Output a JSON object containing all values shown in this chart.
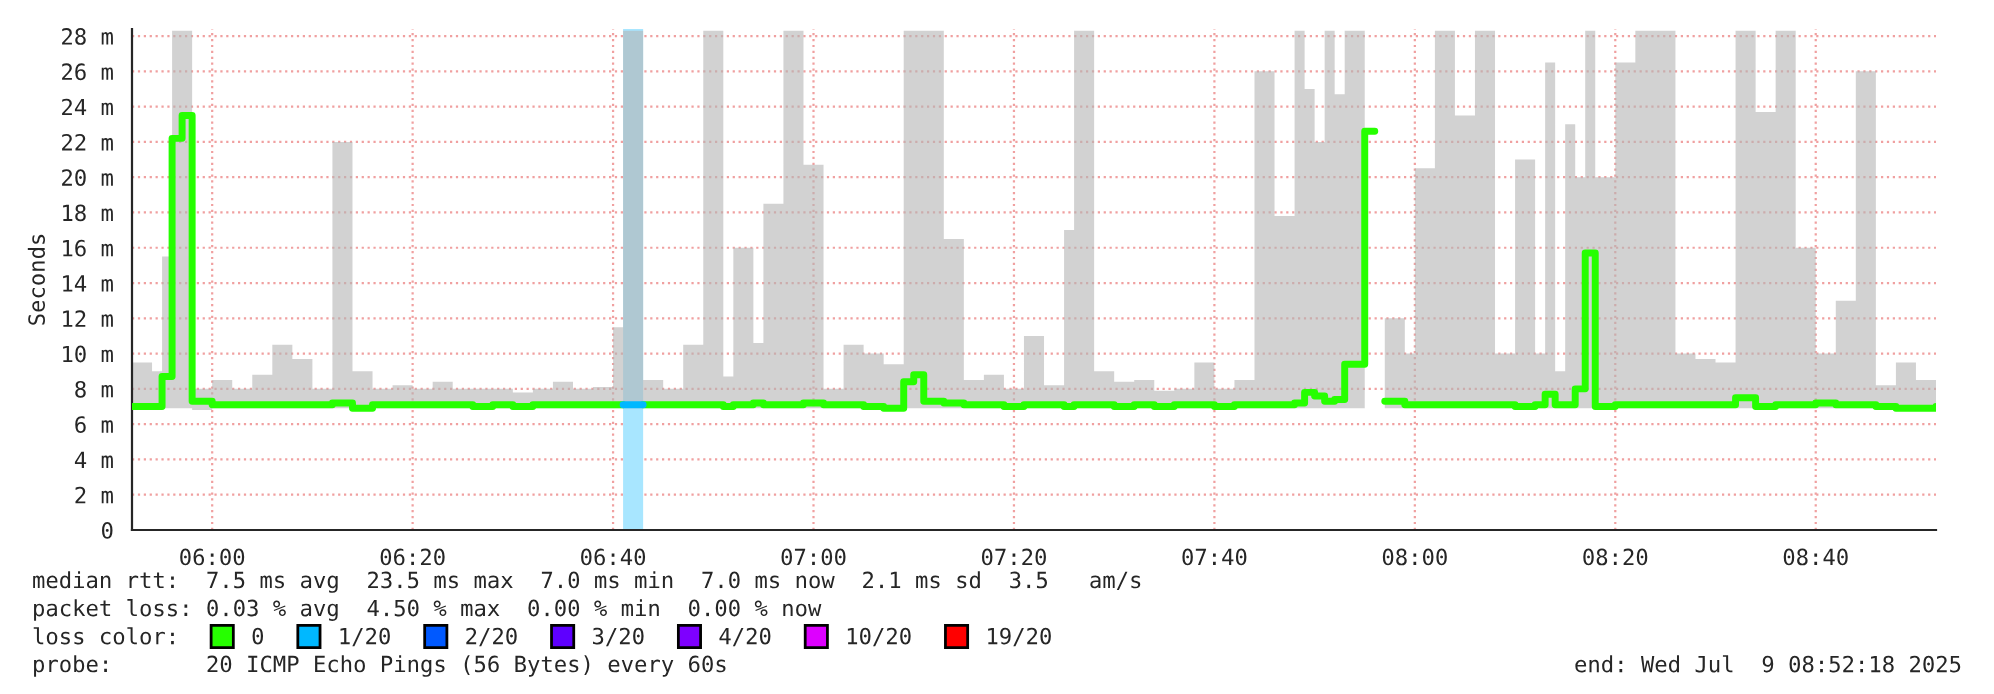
{
  "chart_data": {
    "type": "step",
    "ylabel": "Seconds",
    "x": [
      "2025-07-09T05:52",
      "2025-07-09T05:54",
      "2025-07-09T05:55",
      "2025-07-09T05:56",
      "2025-07-09T05:57",
      "2025-07-09T05:58",
      "2025-07-09T06:00",
      "2025-07-09T06:02",
      "2025-07-09T06:04",
      "2025-07-09T06:06",
      "2025-07-09T06:08",
      "2025-07-09T06:10",
      "2025-07-09T06:12",
      "2025-07-09T06:14",
      "2025-07-09T06:16",
      "2025-07-09T06:18",
      "2025-07-09T06:20",
      "2025-07-09T06:22",
      "2025-07-09T06:24",
      "2025-07-09T06:26",
      "2025-07-09T06:28",
      "2025-07-09T06:30",
      "2025-07-09T06:32",
      "2025-07-09T06:34",
      "2025-07-09T06:36",
      "2025-07-09T06:38",
      "2025-07-09T06:40",
      "2025-07-09T06:41",
      "2025-07-09T06:43",
      "2025-07-09T06:45",
      "2025-07-09T06:47",
      "2025-07-09T06:49",
      "2025-07-09T06:51",
      "2025-07-09T06:52",
      "2025-07-09T06:54",
      "2025-07-09T06:55",
      "2025-07-09T06:57",
      "2025-07-09T06:59",
      "2025-07-09T07:01",
      "2025-07-09T07:03",
      "2025-07-09T07:05",
      "2025-07-09T07:07",
      "2025-07-09T07:09",
      "2025-07-09T07:10",
      "2025-07-09T07:11",
      "2025-07-09T07:13",
      "2025-07-09T07:15",
      "2025-07-09T07:17",
      "2025-07-09T07:19",
      "2025-07-09T07:21",
      "2025-07-09T07:23",
      "2025-07-09T07:25",
      "2025-07-09T07:26",
      "2025-07-09T07:28",
      "2025-07-09T07:30",
      "2025-07-09T07:32",
      "2025-07-09T07:34",
      "2025-07-09T07:36",
      "2025-07-09T07:38",
      "2025-07-09T07:40",
      "2025-07-09T07:42",
      "2025-07-09T07:44",
      "2025-07-09T07:46",
      "2025-07-09T07:48",
      "2025-07-09T07:49",
      "2025-07-09T07:50",
      "2025-07-09T07:51",
      "2025-07-09T07:52",
      "2025-07-09T07:53",
      "2025-07-09T07:55",
      "2025-07-09T07:56",
      "2025-07-09T07:57",
      "2025-07-09T07:59",
      "2025-07-09T08:00",
      "2025-07-09T08:02",
      "2025-07-09T08:04",
      "2025-07-09T08:06",
      "2025-07-09T08:08",
      "2025-07-09T08:10",
      "2025-07-09T08:12",
      "2025-07-09T08:13",
      "2025-07-09T08:14",
      "2025-07-09T08:15",
      "2025-07-09T08:16",
      "2025-07-09T08:17",
      "2025-07-09T08:18",
      "2025-07-09T08:20",
      "2025-07-09T08:22",
      "2025-07-09T08:24",
      "2025-07-09T08:26",
      "2025-07-09T08:28",
      "2025-07-09T08:30",
      "2025-07-09T08:32",
      "2025-07-09T08:34",
      "2025-07-09T08:36",
      "2025-07-09T08:38",
      "2025-07-09T08:40",
      "2025-07-09T08:42",
      "2025-07-09T08:44",
      "2025-07-09T08:46",
      "2025-07-09T08:48",
      "2025-07-09T08:50",
      "2025-07-09T08:52"
    ],
    "series": [
      {
        "name": "0",
        "color": "#26ff00",
        "values": [
          7.0,
          7.0,
          8.7,
          22.2,
          23.5,
          7.3,
          7.1,
          7.1,
          7.1,
          7.1,
          7.1,
          7.1,
          7.2,
          6.9,
          7.1,
          7.1,
          7.1,
          7.1,
          7.1,
          7.0,
          7.1,
          7.0,
          7.1,
          7.1,
          7.1,
          7.1,
          7.1,
          null,
          7.1,
          7.1,
          7.1,
          7.1,
          7.0,
          7.1,
          7.2,
          7.1,
          7.1,
          7.2,
          7.1,
          7.1,
          7.0,
          6.9,
          8.4,
          8.8,
          7.3,
          7.2,
          7.1,
          7.1,
          7.0,
          7.1,
          7.1,
          7.0,
          7.1,
          7.1,
          7.0,
          7.1,
          7.0,
          7.1,
          7.1,
          7.0,
          7.1,
          7.1,
          7.1,
          7.2,
          7.8,
          7.6,
          7.3,
          7.4,
          9.4,
          22.6,
          null,
          7.3,
          7.1,
          7.1,
          7.1,
          7.1,
          7.1,
          7.1,
          7.0,
          7.1,
          7.7,
          7.1,
          7.1,
          8.0,
          15.7,
          7.0,
          7.1,
          7.1,
          7.1,
          7.1,
          7.1,
          7.1,
          7.5,
          7.0,
          7.1,
          7.1,
          7.2,
          7.1,
          7.1,
          7.0,
          6.9,
          6.9,
          7.0
        ],
        "lower": [
          6.9,
          6.9,
          6.9,
          6.9,
          6.9,
          6.8,
          6.9,
          6.9,
          6.9,
          6.9,
          6.9,
          6.9,
          6.9,
          6.8,
          6.9,
          6.9,
          6.9,
          6.9,
          6.9,
          6.8,
          6.9,
          6.8,
          6.9,
          6.9,
          6.9,
          6.9,
          6.9,
          6.9,
          6.9,
          6.9,
          6.9,
          6.9,
          6.8,
          6.9,
          6.9,
          6.9,
          6.9,
          6.9,
          6.9,
          6.9,
          6.8,
          6.8,
          6.9,
          6.9,
          6.9,
          6.9,
          6.9,
          6.9,
          6.8,
          6.9,
          6.9,
          6.8,
          6.9,
          6.9,
          6.8,
          6.9,
          6.8,
          6.9,
          6.9,
          6.8,
          6.9,
          6.9,
          6.9,
          6.9,
          6.9,
          6.9,
          6.9,
          6.9,
          6.9,
          6.9,
          null,
          6.9,
          6.9,
          6.9,
          6.9,
          6.9,
          6.9,
          6.9,
          6.8,
          6.9,
          6.9,
          6.9,
          6.9,
          6.9,
          6.9,
          6.8,
          6.9,
          6.9,
          6.9,
          6.9,
          6.9,
          6.9,
          6.9,
          6.8,
          6.9,
          6.9,
          6.9,
          6.9,
          6.9,
          6.8,
          6.8,
          6.8,
          6.8
        ],
        "upper": [
          9.5,
          9.0,
          15.5,
          28.3,
          28.3,
          8.0,
          8.5,
          8.0,
          8.8,
          10.5,
          9.7,
          8.0,
          22.0,
          9.0,
          8.0,
          8.2,
          8.0,
          8.4,
          8.0,
          8.0,
          8.0,
          7.8,
          8.0,
          8.4,
          8.0,
          8.1,
          11.5,
          28.3,
          8.5,
          8.0,
          10.5,
          28.3,
          8.7,
          16.0,
          10.6,
          18.5,
          28.3,
          20.7,
          8.0,
          10.5,
          10.0,
          9.4,
          28.3,
          28.3,
          28.3,
          16.5,
          8.5,
          8.8,
          8.0,
          11.0,
          8.2,
          17.0,
          28.3,
          9.0,
          8.4,
          8.5,
          7.9,
          8.0,
          9.5,
          8.0,
          8.5,
          26.0,
          17.8,
          28.3,
          25.0,
          22.0,
          28.3,
          24.7,
          28.3,
          28.3,
          null,
          12.0,
          10.0,
          20.5,
          28.3,
          23.5,
          28.3,
          10.0,
          21.0,
          10.0,
          26.5,
          9.0,
          23.0,
          20.0,
          28.3,
          20.0,
          26.5,
          28.3,
          28.3,
          10.0,
          9.7,
          9.5,
          28.3,
          23.7,
          28.3,
          16.0,
          10.0,
          13.0,
          26.0,
          8.2,
          9.5,
          8.5,
          8.5
        ]
      },
      {
        "name": "1/20",
        "color": "#00b8ff",
        "x": [
          "2025-07-09T06:41",
          "2025-07-09T06:43"
        ],
        "values": [
          7.1,
          7.1
        ]
      },
      {
        "name": "2/20",
        "color": "#0059ff",
        "values": [
          null,
          null,
          null,
          null,
          null,
          null,
          null,
          null,
          null,
          null,
          null,
          null,
          null,
          null,
          null,
          null,
          null,
          null,
          null,
          null,
          null,
          null,
          null,
          null,
          null,
          null,
          null,
          null,
          null,
          null,
          null,
          null,
          null,
          null,
          null,
          null,
          null,
          null,
          null,
          null,
          null,
          null,
          null,
          null,
          null,
          null,
          null,
          null,
          null,
          null,
          null,
          null,
          null,
          null,
          null,
          null,
          null,
          null,
          null,
          null,
          null,
          null,
          null,
          null,
          null,
          null,
          null,
          null,
          null,
          null,
          null,
          null,
          null,
          null,
          null,
          null,
          null,
          null,
          null,
          null,
          null,
          null,
          null,
          null,
          null,
          null,
          null,
          null,
          null,
          null,
          null,
          null,
          null,
          null,
          null,
          null,
          null,
          null,
          null,
          null,
          null,
          null,
          null
        ]
      },
      {
        "name": "3/20",
        "color": "#5e00ff",
        "values": [
          null,
          null,
          null,
          null,
          null,
          null,
          null,
          null,
          null,
          null,
          null,
          null,
          null,
          null,
          null,
          null,
          null,
          null,
          null,
          null,
          null,
          null,
          null,
          null,
          null,
          null,
          null,
          null,
          null,
          null,
          null,
          null,
          null,
          null,
          null,
          null,
          null,
          null,
          null,
          null,
          null,
          null,
          null,
          null,
          null,
          null,
          null,
          null,
          null,
          null,
          null,
          null,
          null,
          null,
          null,
          null,
          null,
          null,
          null,
          null,
          null,
          null,
          null,
          null,
          null,
          null,
          null,
          null,
          null,
          null,
          null,
          null,
          null,
          null,
          null,
          null,
          null,
          null,
          null,
          null,
          null,
          null,
          null,
          null,
          null,
          null,
          null,
          null,
          null,
          null,
          null,
          null,
          null,
          null,
          null,
          null,
          null,
          null,
          null,
          null,
          null,
          null,
          null
        ]
      },
      {
        "name": "4/20",
        "color": "#7e00ff",
        "values": [
          null,
          null,
          null,
          null,
          null,
          null,
          null,
          null,
          null,
          null,
          null,
          null,
          null,
          null,
          null,
          null,
          null,
          null,
          null,
          null,
          null,
          null,
          null,
          null,
          null,
          null,
          null,
          null,
          null,
          null,
          null,
          null,
          null,
          null,
          null,
          null,
          null,
          null,
          null,
          null,
          null,
          null,
          null,
          null,
          null,
          null,
          null,
          null,
          null,
          null,
          null,
          null,
          null,
          null,
          null,
          null,
          null,
          null,
          null,
          null,
          null,
          null,
          null,
          null,
          null,
          null,
          null,
          null,
          null,
          null,
          null,
          null,
          null,
          null,
          null,
          null,
          null,
          null,
          null,
          null,
          null,
          null,
          null,
          null,
          null,
          null,
          null,
          null,
          null,
          null,
          null,
          null,
          null,
          null,
          null,
          null,
          null,
          null,
          null,
          null,
          null,
          null,
          null
        ]
      },
      {
        "name": "10/20",
        "color": "#dd00ff",
        "values": [
          null,
          null,
          null,
          null,
          null,
          null,
          null,
          null,
          null,
          null,
          null,
          null,
          null,
          null,
          null,
          null,
          null,
          null,
          null,
          null,
          null,
          null,
          null,
          null,
          null,
          null,
          null,
          null,
          null,
          null,
          null,
          null,
          null,
          null,
          null,
          null,
          null,
          null,
          null,
          null,
          null,
          null,
          null,
          null,
          null,
          null,
          null,
          null,
          null,
          null,
          null,
          null,
          null,
          null,
          null,
          null,
          null,
          null,
          null,
          null,
          null,
          null,
          null,
          null,
          null,
          null,
          null,
          null,
          null,
          null,
          null,
          null,
          null,
          null,
          null,
          null,
          null,
          null,
          null,
          null,
          null,
          null,
          null,
          null,
          null,
          null,
          null,
          null,
          null,
          null,
          null,
          null,
          null,
          null,
          null,
          null,
          null,
          null,
          null,
          null,
          null,
          null,
          null
        ]
      },
      {
        "name": "19/20",
        "color": "#ff0000",
        "values": [
          null,
          null,
          null,
          null,
          null,
          null,
          null,
          null,
          null,
          null,
          null,
          null,
          null,
          null,
          null,
          null,
          null,
          null,
          null,
          null,
          null,
          null,
          null,
          null,
          null,
          null,
          null,
          null,
          null,
          null,
          null,
          null,
          null,
          null,
          null,
          null,
          null,
          null,
          null,
          null,
          null,
          null,
          null,
          null,
          null,
          null,
          null,
          null,
          null,
          null,
          null,
          null,
          null,
          null,
          null,
          null,
          null,
          null,
          null,
          null,
          null,
          null,
          null,
          null,
          null,
          null,
          null,
          null,
          null,
          null,
          null,
          null,
          null,
          null,
          null,
          null,
          null,
          null,
          null,
          null,
          null,
          null,
          null,
          null,
          null,
          null,
          null,
          null,
          null,
          null,
          null,
          null,
          null,
          null,
          null,
          null,
          null,
          null,
          null,
          null,
          null,
          null,
          null
        ]
      }
    ],
    "legend_title": "loss color:",
    "legend": "bottom left",
    "bands": [
      {
        "axis": "x",
        "from": "2025-07-09T06:41",
        "to": "2025-07-09T06:43",
        "color": "#a8e6ff"
      }
    ],
    "xlim": [
      "2025-07-09T05:52",
      "2025-07-09T08:52"
    ],
    "xticks": [
      {
        "value": "2025-07-09T06:00",
        "label": "06:00"
      },
      {
        "value": "2025-07-09T06:20",
        "label": "06:20"
      },
      {
        "value": "2025-07-09T06:40",
        "label": "06:40"
      },
      {
        "value": "2025-07-09T07:00",
        "label": "07:00"
      },
      {
        "value": "2025-07-09T07:20",
        "label": "07:20"
      },
      {
        "value": "2025-07-09T07:40",
        "label": "07:40"
      },
      {
        "value": "2025-07-09T08:00",
        "label": "08:00"
      },
      {
        "value": "2025-07-09T08:20",
        "label": "08:20"
      },
      {
        "value": "2025-07-09T08:40",
        "label": "08:40"
      }
    ],
    "ylim": [
      0,
      28.4
    ],
    "yticks": [
      0,
      {
        "value": 2,
        "label": "2 m"
      },
      {
        "value": 4,
        "label": "4 m"
      },
      {
        "value": 6,
        "label": "6 m"
      },
      {
        "value": 8,
        "label": "8 m"
      },
      {
        "value": 10,
        "label": "10 m"
      },
      {
        "value": 12,
        "label": "12 m"
      },
      {
        "value": 14,
        "label": "14 m"
      },
      {
        "value": 16,
        "label": "16 m"
      },
      {
        "value": 18,
        "label": "18 m"
      },
      {
        "value": 20,
        "label": "20 m"
      },
      {
        "value": 22,
        "label": "22 m"
      },
      {
        "value": 24,
        "label": "24 m"
      },
      {
        "value": 26,
        "label": "26 m"
      },
      {
        "value": 28,
        "label": "28 m"
      }
    ],
    "grid": true,
    "marker": "none",
    "line_style": "solid",
    "annotations": [
      "median rtt:  7.5 ms avg  23.5 ms max  7.0 ms min  7.0 ms now  2.1 ms sd  3.5   am/s",
      "packet loss: 0.03 % avg  4.50 % max  0.00 % min  0.00 % now",
      "probe:       20 ICMP Echo Pings (56 Bytes) every 60s",
      "end: Wed Jul  9 08:52:18 2025"
    ]
  }
}
